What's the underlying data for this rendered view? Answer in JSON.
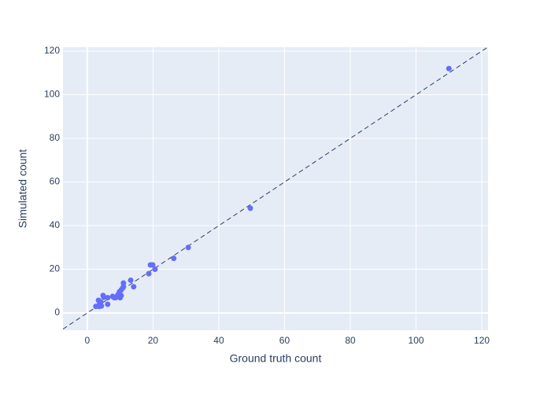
{
  "chart_data": {
    "type": "scatter",
    "x_label": "Ground truth count",
    "y_label": "Simulated count",
    "series": [
      {
        "color": "#636efa",
        "x": [
          110,
          49.6,
          30.7,
          26.3,
          20.6,
          19.2,
          19.9,
          18.7,
          13.2,
          14.1,
          11,
          11,
          10.8,
          10.3,
          9.8,
          9.3,
          10.3,
          10,
          8.6,
          7.7,
          8.2,
          6.2,
          6.2,
          5,
          4.8,
          4.1,
          3.4,
          4.3,
          3.6,
          2.6,
          3.8
        ],
        "values": [
          112,
          48,
          30,
          25,
          20,
          22,
          22,
          18,
          15,
          12,
          13.7,
          12,
          11.5,
          10.5,
          9.7,
          8.3,
          8,
          7,
          7,
          7.6,
          7,
          7,
          4,
          7.2,
          8,
          5,
          5.8,
          3.2,
          3,
          3,
          4.3
        ]
      }
    ],
    "xlim": [
      -7.4,
      121.9
    ],
    "ylim": [
      -7.9,
      121.8
    ],
    "xticks": [
      0,
      20,
      40,
      60,
      80,
      100,
      120
    ],
    "yticks": [
      0,
      20,
      40,
      60,
      80,
      100,
      120
    ],
    "grid": true,
    "identity_line": true,
    "plot_background": "#e5ecf6"
  }
}
